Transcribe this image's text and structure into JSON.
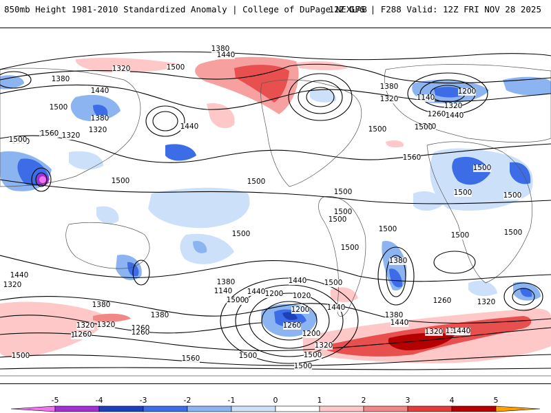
{
  "header": {
    "left_title": "850mb Height 1981-2010 Standardized Anomaly | College of DuPage NEXLAB",
    "right_title": "12Z GFS | F288 Valid: 12Z FRI NOV 28 2025"
  },
  "map": {
    "contour_labels": [
      "1380",
      "1440",
      "1500",
      "1320",
      "1380",
      "1500",
      "1440",
      "1380",
      "1320",
      "1260",
      "1320",
      "1560",
      "1500",
      "1140",
      "1200",
      "1320",
      "1260",
      "1440",
      "1500",
      "1380",
      "1320",
      "1500",
      "1500",
      "1440",
      "1560",
      "1500",
      "1500",
      "1500",
      "1500",
      "1500",
      "1500",
      "1500",
      "1500",
      "1500",
      "1500",
      "1500",
      "1500",
      "1380",
      "1440",
      "1500",
      "1440",
      "1320",
      "1380",
      "1140",
      "1200",
      "1260",
      "1020",
      "1200",
      "1500",
      "1440",
      "1320",
      "1260",
      "1200",
      "1380",
      "1440",
      "1500",
      "1380",
      "1320",
      "1260",
      "1320",
      "1260",
      "1200",
      "1260",
      "1440",
      "1320",
      "1320",
      "1380",
      "1320",
      "1440",
      "1500",
      "1560",
      "1500",
      "1500",
      "1500",
      "1260",
      "1500"
    ]
  },
  "colorbar": {
    "tick_labels": [
      "-5",
      "-4",
      "-3",
      "-2",
      "-1",
      "0",
      "1",
      "2",
      "3",
      "4",
      "5"
    ],
    "colors": [
      "#f073f0",
      "#a030d0",
      "#1c40b8",
      "#3c6ce6",
      "#8cb4f0",
      "#cce0fa",
      "#ffffff",
      "#ffc8c8",
      "#f08888",
      "#e03c3c",
      "#b40000",
      "#ffa000"
    ]
  }
}
